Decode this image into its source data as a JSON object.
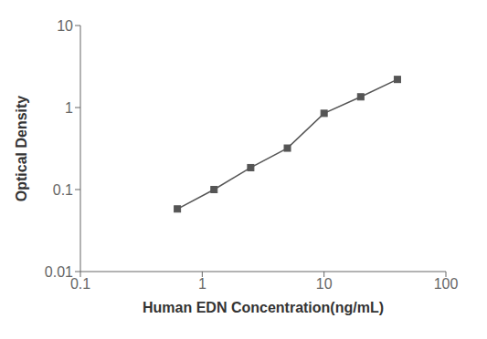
{
  "chart_data": {
    "type": "line",
    "x": [
      0.625,
      1.25,
      2.5,
      5.0,
      10.0,
      20.0,
      40.0
    ],
    "values": [
      0.058,
      0.1,
      0.185,
      0.32,
      0.85,
      1.35,
      2.2
    ],
    "xlabel": "Human EDN Concentration(ng/mL)",
    "ylabel": "Optical Density",
    "xlim": [
      0.1,
      100
    ],
    "ylim": [
      0.01,
      10
    ],
    "xticks": [
      0.1,
      1,
      10,
      100
    ],
    "yticks": [
      0.01,
      0.1,
      1,
      10
    ],
    "log": true,
    "grid": false,
    "color": "#555555",
    "marker": "square"
  }
}
